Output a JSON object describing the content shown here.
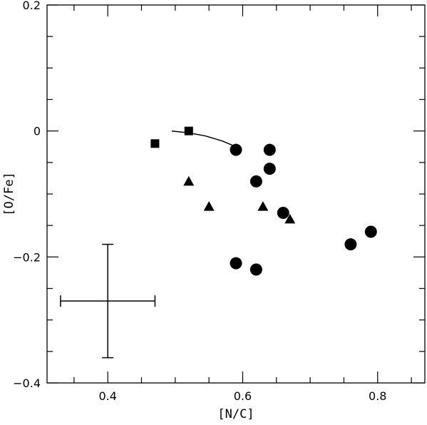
{
  "chart_data": {
    "type": "scatter",
    "xlabel": "[N/C]",
    "ylabel": "[O/Fe]",
    "xlim": [
      0.31,
      0.87
    ],
    "ylim": [
      -0.4,
      0.2
    ],
    "x_ticks": [
      0.4,
      0.6,
      0.8
    ],
    "x_tick_labels": [
      "0.4",
      "0.6",
      "0.8"
    ],
    "x_minor_step": 0.05,
    "y_ticks": [
      0.2,
      0,
      -0.2,
      -0.4
    ],
    "y_tick_labels": [
      "0.2",
      "0",
      "−0.2",
      "−0.4"
    ],
    "y_minor_step": 0.05,
    "grid": false,
    "series": [
      {
        "marker": "circle",
        "points": [
          [
            0.59,
            -0.03
          ],
          [
            0.64,
            -0.03
          ],
          [
            0.64,
            -0.06
          ],
          [
            0.62,
            -0.08
          ],
          [
            0.66,
            -0.13
          ],
          [
            0.79,
            -0.16
          ],
          [
            0.76,
            -0.18
          ],
          [
            0.59,
            -0.21
          ],
          [
            0.62,
            -0.22
          ]
        ]
      },
      {
        "marker": "triangle",
        "points": [
          [
            0.52,
            -0.08
          ],
          [
            0.55,
            -0.12
          ],
          [
            0.63,
            -0.12
          ],
          [
            0.67,
            -0.14
          ]
        ]
      },
      {
        "marker": "square",
        "points": [
          [
            0.47,
            -0.02
          ],
          [
            0.52,
            0.0
          ]
        ]
      }
    ],
    "curve": {
      "points": [
        [
          0.495,
          0.0
        ],
        [
          0.52,
          -0.003
        ],
        [
          0.545,
          -0.008
        ],
        [
          0.57,
          -0.016
        ],
        [
          0.59,
          -0.025
        ]
      ]
    },
    "error_bar": {
      "center": [
        0.4,
        -0.27
      ],
      "x_range": [
        0.33,
        0.47
      ],
      "y_range": [
        -0.36,
        -0.18
      ]
    }
  }
}
